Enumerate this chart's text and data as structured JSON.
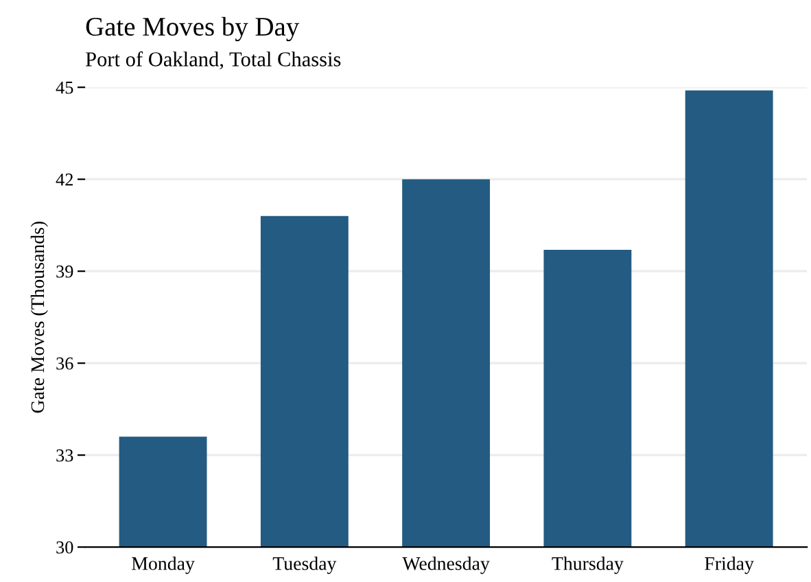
{
  "chart_data": {
    "type": "bar",
    "title": "Gate Moves by Day",
    "subtitle": "Port of Oakland, Total Chassis",
    "ylabel": "Gate Moves (Thousands)",
    "categories": [
      "Monday",
      "Tuesday",
      "Wednesday",
      "Thursday",
      "Friday"
    ],
    "values": [
      33.6,
      40.8,
      42.0,
      39.7,
      44.9
    ],
    "color": "#235b82",
    "ylim": [
      30,
      45
    ],
    "yticks": [
      30,
      33,
      36,
      39,
      42,
      45
    ],
    "grid": "y"
  }
}
